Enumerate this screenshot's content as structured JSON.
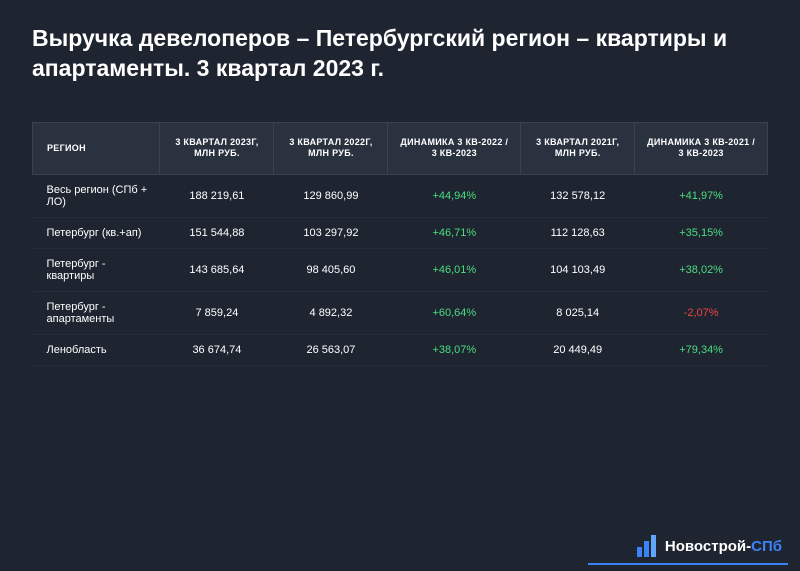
{
  "title": "Выручка девелоперов – Петербургский регион – квартиры и апартаменты. 3 квартал 2023 г.",
  "table": {
    "type": "table",
    "background_color": "#1e2430",
    "header_bg": "#2a313f",
    "border_color": "#3a4150",
    "text_color": "#ffffff",
    "positive_color": "#4ade80",
    "negative_color": "#ef4444",
    "header_fontsize": 9,
    "cell_fontsize": 11,
    "columns": [
      "РЕГИОН",
      "3 КВАРТАЛ 2023Г, МЛН РУБ.",
      "3 КВАРТАЛ 2022Г, МЛН РУБ.",
      "ДИНАМИКА 3 КВ-2022 / 3 КВ-2023",
      "3 КВАРТАЛ 2021Г, МЛН РУБ.",
      "ДИНАМИКА 3 КВ-2021 / 3 КВ-2023"
    ],
    "rows": [
      {
        "region": "Весь регион (СПб + ЛО)",
        "q2023": "188 219,61",
        "q2022": "129 860,99",
        "dyn22": "+44,94%",
        "dyn22_sign": "pos",
        "q2021": "132 578,12",
        "dyn21": "+41,97%",
        "dyn21_sign": "pos"
      },
      {
        "region": "Петербург (кв.+ап)",
        "q2023": "151 544,88",
        "q2022": "103 297,92",
        "dyn22": "+46,71%",
        "dyn22_sign": "pos",
        "q2021": "112 128,63",
        "dyn21": "+35,15%",
        "dyn21_sign": "pos"
      },
      {
        "region": "Петербург - квартиры",
        "q2023": "143 685,64",
        "q2022": "98 405,60",
        "dyn22": "+46,01%",
        "dyn22_sign": "pos",
        "q2021": "104 103,49",
        "dyn21": "+38,02%",
        "dyn21_sign": "pos"
      },
      {
        "region": "Петербург - апартаменты",
        "q2023": "7 859,24",
        "q2022": "4 892,32",
        "dyn22": "+60,64%",
        "dyn22_sign": "pos",
        "q2021": "8 025,14",
        "dyn21": "-2,07%",
        "dyn21_sign": "neg"
      },
      {
        "region": "Ленобласть",
        "q2023": "36 674,74",
        "q2022": "26 563,07",
        "dyn22": "+38,07%",
        "dyn22_sign": "pos",
        "q2021": "20 449,49",
        "dyn21": "+79,34%",
        "dyn21_sign": "pos"
      }
    ]
  },
  "logo": {
    "text_main": "Новострой-",
    "text_accent": "СПб",
    "icon_color": "#3b82f6",
    "underline_color": "#3b82f6"
  }
}
